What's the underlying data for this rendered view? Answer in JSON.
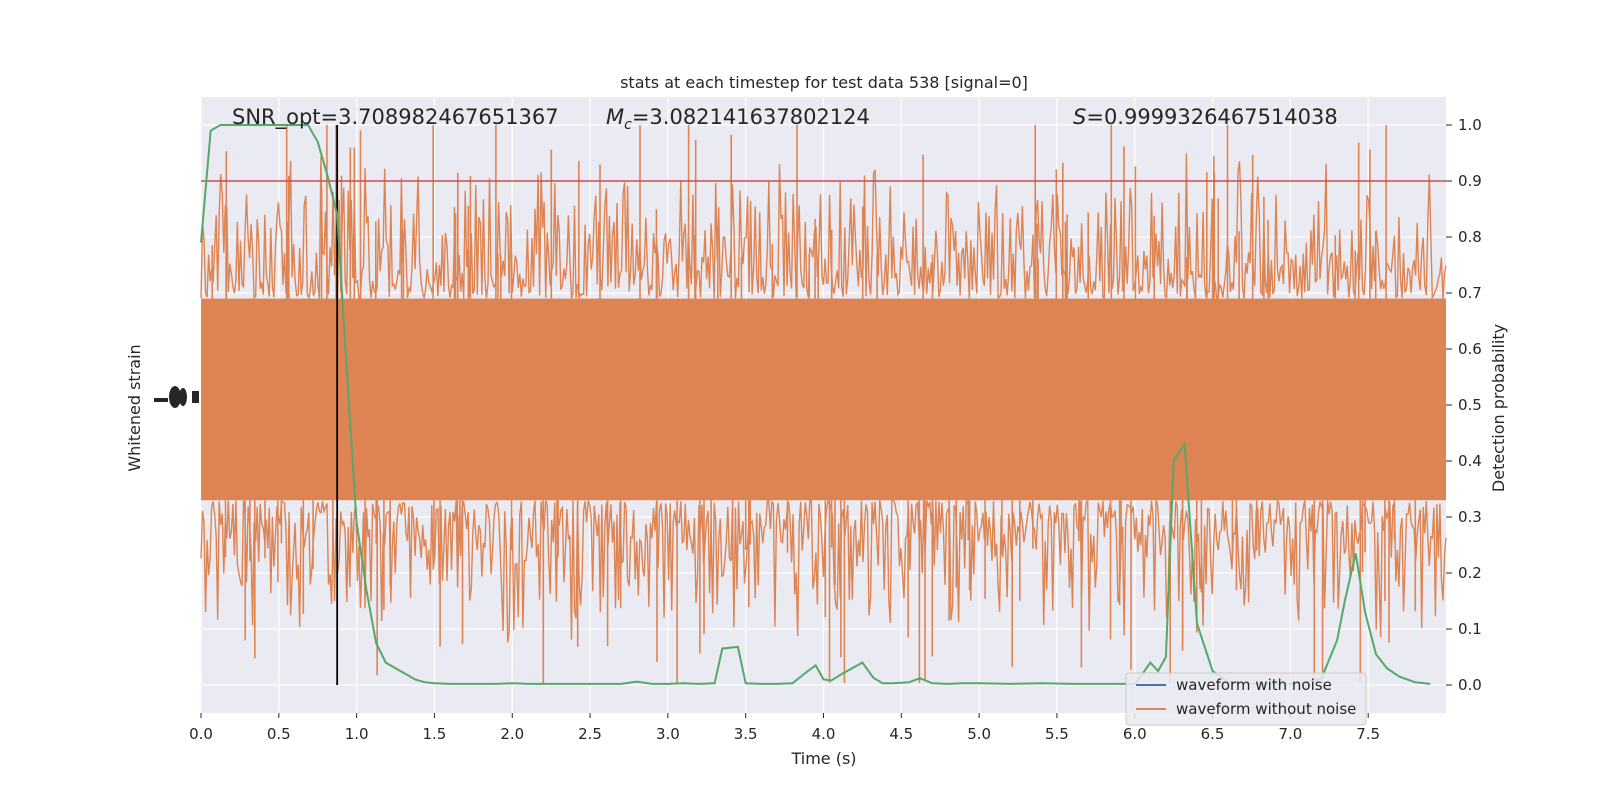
{
  "chart_data": {
    "type": "line",
    "title": "stats at each timestep for test data 538 [signal=0]",
    "xlabel": "Time (s)",
    "ylabel_left": "Whitened strain",
    "ylabel_right": "Detection probability",
    "xlim": [
      0,
      8
    ],
    "ylim_right": [
      -0.05,
      1.05
    ],
    "x_ticks": [
      "0.0",
      "0.5",
      "1.0",
      "1.5",
      "2.0",
      "2.5",
      "3.0",
      "3.5",
      "4.0",
      "4.5",
      "5.0",
      "5.5",
      "6.0",
      "6.5",
      "7.0",
      "7.5"
    ],
    "y_ticks_right": [
      "0.0",
      "0.1",
      "0.2",
      "0.3",
      "0.4",
      "0.5",
      "0.6",
      "0.7",
      "0.8",
      "0.9",
      "1.0"
    ],
    "grid": true,
    "annotations": {
      "snr": "SNR_opt=3.708982467651367",
      "mc_symbol": "M",
      "mc_sub": "c",
      "mc_value": "=3.082141637802124",
      "s_symbol": "S",
      "s_value": "=0.9999326467514038"
    },
    "threshold": 0.9,
    "marker_time": 0.875,
    "legend": {
      "position": "lower right",
      "entries": [
        {
          "label": "waveform with noise",
          "color": "#4c72b0"
        },
        {
          "label": "waveform without noise",
          "color": "#dd8452"
        }
      ]
    },
    "colors": {
      "background": "#eaeaf2",
      "strain": "#dd8452",
      "probability": "#55a868",
      "threshold": "#c44e52",
      "marker": "#000000"
    },
    "series": [
      {
        "x": [
          0.0,
          0.0625,
          0.125,
          0.1875,
          0.25,
          0.3125,
          0.375,
          0.4375,
          0.5,
          0.5625,
          0.625,
          0.6875,
          0.75,
          0.8125,
          0.875,
          0.9375,
          1.0,
          1.0625,
          1.125,
          1.1875,
          1.25,
          1.3125,
          1.375,
          1.4375,
          1.5,
          1.6,
          1.7,
          1.8,
          1.9,
          2.0,
          2.1,
          2.2,
          2.3,
          2.4,
          2.5,
          2.6,
          2.7,
          2.8,
          2.9,
          3.0,
          3.1,
          3.2,
          3.3,
          3.35,
          3.45,
          3.5,
          3.6,
          3.7,
          3.8,
          3.9,
          3.95,
          4.0,
          4.05,
          4.12,
          4.25,
          4.32,
          4.38,
          4.45,
          4.55,
          4.62,
          4.7,
          4.8,
          4.9,
          5.0,
          5.2,
          5.4,
          5.6,
          5.8,
          6.0,
          6.05,
          6.1,
          6.15,
          6.2,
          6.25,
          6.32,
          6.4,
          6.5,
          6.6,
          6.7,
          6.8,
          6.9,
          7.0,
          7.1,
          7.2,
          7.3,
          7.35,
          7.42,
          7.48,
          7.55,
          7.62,
          7.7,
          7.8,
          7.9
        ],
        "values": [
          0.79,
          0.99,
          1.0,
          1.0,
          1.0,
          1.0,
          1.0,
          1.0,
          1.0,
          1.0,
          1.0,
          1.0,
          0.97,
          0.91,
          0.84,
          0.56,
          0.29,
          0.17,
          0.075,
          0.04,
          0.03,
          0.02,
          0.01,
          0.005,
          0.003,
          0.002,
          0.002,
          0.002,
          0.002,
          0.003,
          0.002,
          0.002,
          0.002,
          0.002,
          0.002,
          0.002,
          0.002,
          0.006,
          0.002,
          0.002,
          0.003,
          0.002,
          0.003,
          0.065,
          0.068,
          0.003,
          0.002,
          0.002,
          0.003,
          0.025,
          0.035,
          0.01,
          0.008,
          0.02,
          0.04,
          0.013,
          0.003,
          0.003,
          0.005,
          0.012,
          0.003,
          0.002,
          0.003,
          0.003,
          0.002,
          0.003,
          0.002,
          0.002,
          0.002,
          0.02,
          0.04,
          0.025,
          0.05,
          0.4,
          0.43,
          0.11,
          0.025,
          0.005,
          0.003,
          0.002,
          0.002,
          0.002,
          0.005,
          0.012,
          0.08,
          0.15,
          0.235,
          0.13,
          0.055,
          0.03,
          0.015,
          0.005,
          0.002
        ]
      }
    ]
  }
}
